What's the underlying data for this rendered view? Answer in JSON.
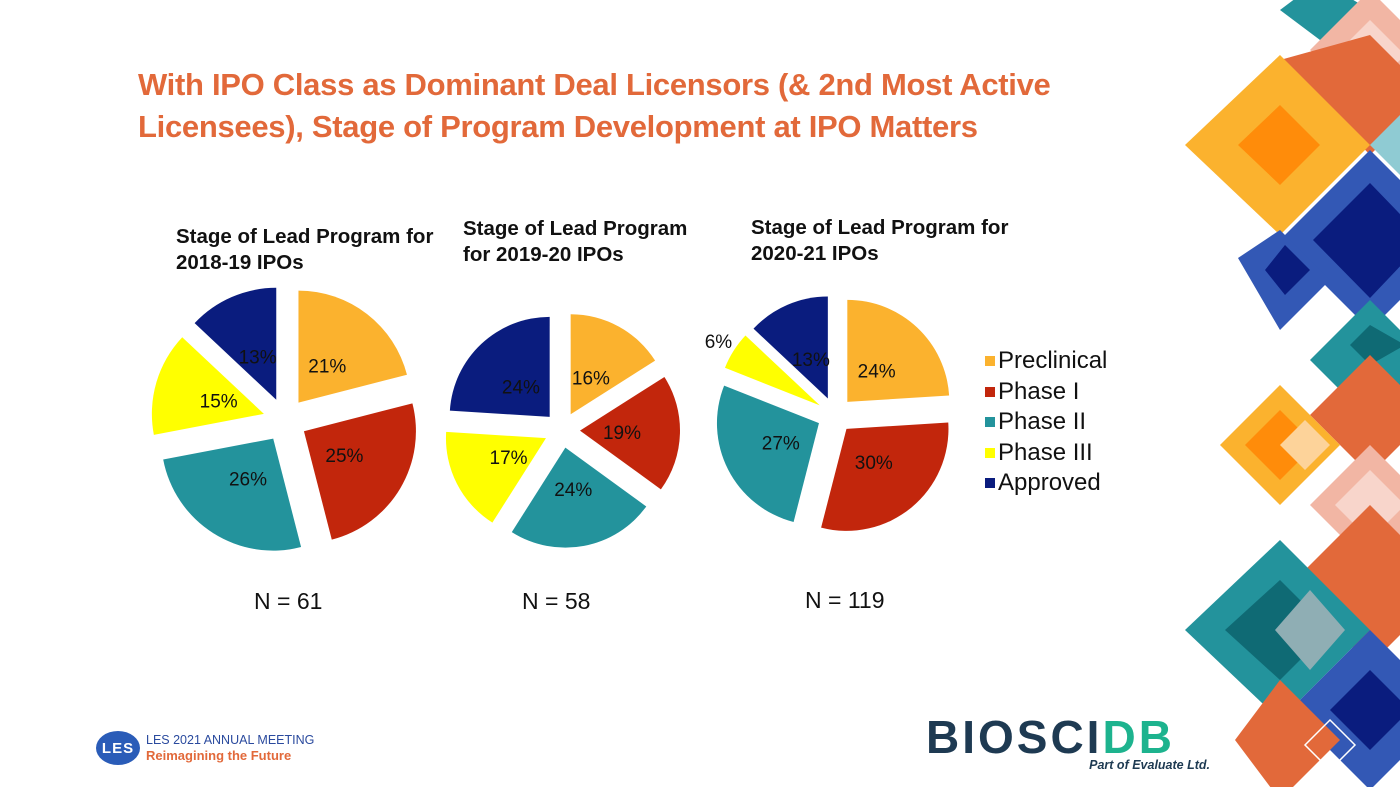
{
  "slide": {
    "title": "With IPO Class as Dominant Deal Licensors (& 2nd Most Active Licensees), Stage of Program Development at IPO Matters"
  },
  "chart_data": [
    {
      "type": "pie",
      "title": "Stage of Lead Program for 2018-19 IPOs",
      "n_label": "N = 61",
      "categories": [
        "Preclinical",
        "Phase I",
        "Phase II",
        "Phase III",
        "Approved"
      ],
      "values": [
        21,
        25,
        26,
        15,
        13
      ],
      "labels": [
        "21%",
        "25%",
        "26%",
        "15%",
        "13%"
      ],
      "exploded": true,
      "start": "12 o'clock, clockwise"
    },
    {
      "type": "pie",
      "title": "Stage of Lead Program for 2019-20 IPOs",
      "n_label": "N = 58",
      "categories": [
        "Preclinical",
        "Phase I",
        "Phase II",
        "Phase III",
        "Approved"
      ],
      "values": [
        16,
        19,
        24,
        17,
        24
      ],
      "labels": [
        "16%",
        "19%",
        "24%",
        "17%",
        "24%"
      ],
      "exploded": true,
      "start": "12 o'clock, clockwise"
    },
    {
      "type": "pie",
      "title": "Stage of Lead Program for 2020-21 IPOs",
      "n_label": "N = 119",
      "categories": [
        "Preclinical",
        "Phase I",
        "Phase II",
        "Phase III",
        "Approved"
      ],
      "values": [
        24,
        30,
        27,
        6,
        13
      ],
      "labels": [
        "24%",
        "30%",
        "27%",
        "6%",
        "13%"
      ],
      "exploded": true,
      "start": "12 o'clock, clockwise"
    }
  ],
  "legend": {
    "placement": "right",
    "items": [
      {
        "label": "Preclinical",
        "color": "#FBB22E"
      },
      {
        "label": "Phase I",
        "color": "#C2260C"
      },
      {
        "label": "Phase II",
        "color": "#23939C"
      },
      {
        "label": "Phase III",
        "color": "#FFFF00"
      },
      {
        "label": "Approved",
        "color": "#0A1C7E"
      }
    ]
  },
  "footer": {
    "les_badge": "LES",
    "les_line1": "LES 2021 ANNUAL MEETING",
    "les_line2": "Reimagining the Future",
    "bio_part1": "BIO",
    "bio_part2": "SCI",
    "bio_part3": "DB",
    "bio_sub": "Part of Evaluate Ltd."
  }
}
